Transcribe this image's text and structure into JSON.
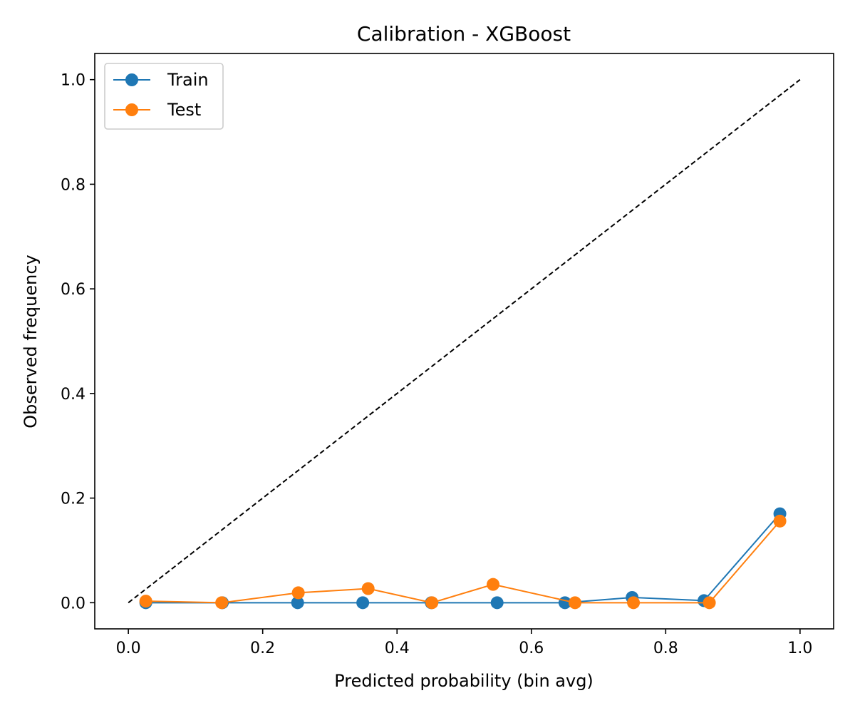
{
  "chart_data": {
    "type": "line",
    "title": "Calibration - XGBoost",
    "xlabel": "Predicted probability (bin avg)",
    "ylabel": "Observed frequency",
    "xlim": [
      -0.05,
      1.05
    ],
    "ylim": [
      -0.05,
      1.05
    ],
    "xticks": [
      0.0,
      0.2,
      0.4,
      0.6,
      0.8,
      1.0
    ],
    "yticks": [
      0.0,
      0.2,
      0.4,
      0.6,
      0.8,
      1.0
    ],
    "xtick_labels": [
      "0.0",
      "0.2",
      "0.4",
      "0.6",
      "0.8",
      "1.0"
    ],
    "ytick_labels": [
      "0.0",
      "0.2",
      "0.4",
      "0.6",
      "0.8",
      "1.0"
    ],
    "grid": false,
    "legend_position": "top-left",
    "reference_line": {
      "style": "dashed",
      "color": "#000000",
      "x": [
        0.0,
        1.0
      ],
      "y": [
        0.0,
        1.0
      ]
    },
    "series": [
      {
        "name": "Train",
        "color": "#1f77b4",
        "marker": "circle",
        "x": [
          0.026,
          0.14,
          0.252,
          0.349,
          0.451,
          0.549,
          0.65,
          0.75,
          0.857,
          0.97
        ],
        "y": [
          0.0,
          0.0,
          0.0,
          0.0,
          0.0,
          0.0,
          0.0,
          0.01,
          0.004,
          0.17
        ]
      },
      {
        "name": "Test",
        "color": "#ff7f0e",
        "marker": "circle",
        "x": [
          0.026,
          0.139,
          0.253,
          0.357,
          0.452,
          0.543,
          0.665,
          0.752,
          0.865,
          0.97
        ],
        "y": [
          0.003,
          0.0,
          0.019,
          0.027,
          0.0,
          0.035,
          0.0,
          0.0,
          0.0,
          0.156
        ]
      }
    ]
  }
}
